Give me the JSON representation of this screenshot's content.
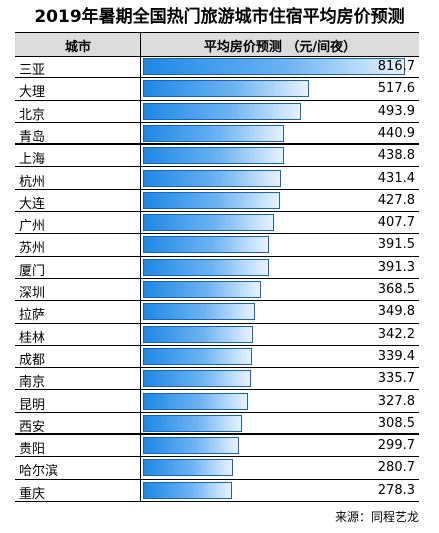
{
  "title": "2019年暑期全国热门旅游城市住宿平均房价预测",
  "source": "来源：同程艺龙",
  "chart_data": {
    "type": "bar",
    "xlabel": "城市",
    "ylabel": "平均房价预测  （元/间夜）",
    "categories": [
      "三亚",
      "大理",
      "北京",
      "青岛",
      "上海",
      "杭州",
      "大连",
      "广州",
      "苏州",
      "厦门",
      "深圳",
      "拉萨",
      "桂林",
      "成都",
      "南京",
      "昆明",
      "西安",
      "贵阳",
      "哈尔滨",
      "重庆"
    ],
    "values": [
      816.7,
      517.6,
      493.9,
      440.9,
      438.8,
      431.4,
      427.8,
      407.7,
      391.5,
      391.3,
      368.5,
      349.8,
      342.2,
      339.4,
      335.7,
      327.8,
      308.5,
      299.7,
      280.7,
      278.3
    ],
    "value_labels": [
      "816.7",
      "517.6",
      "493.9",
      "440.9",
      "438.8",
      "431.4",
      "427.8",
      "407.7",
      "391.5",
      "391.3",
      "368.5",
      "349.8",
      "342.2",
      "339.4",
      "335.7",
      "327.8",
      "308.5",
      "299.7",
      "280.7",
      "278.3"
    ],
    "xlim": [
      0,
      816.7
    ],
    "bar_color": "#1e88e5"
  }
}
